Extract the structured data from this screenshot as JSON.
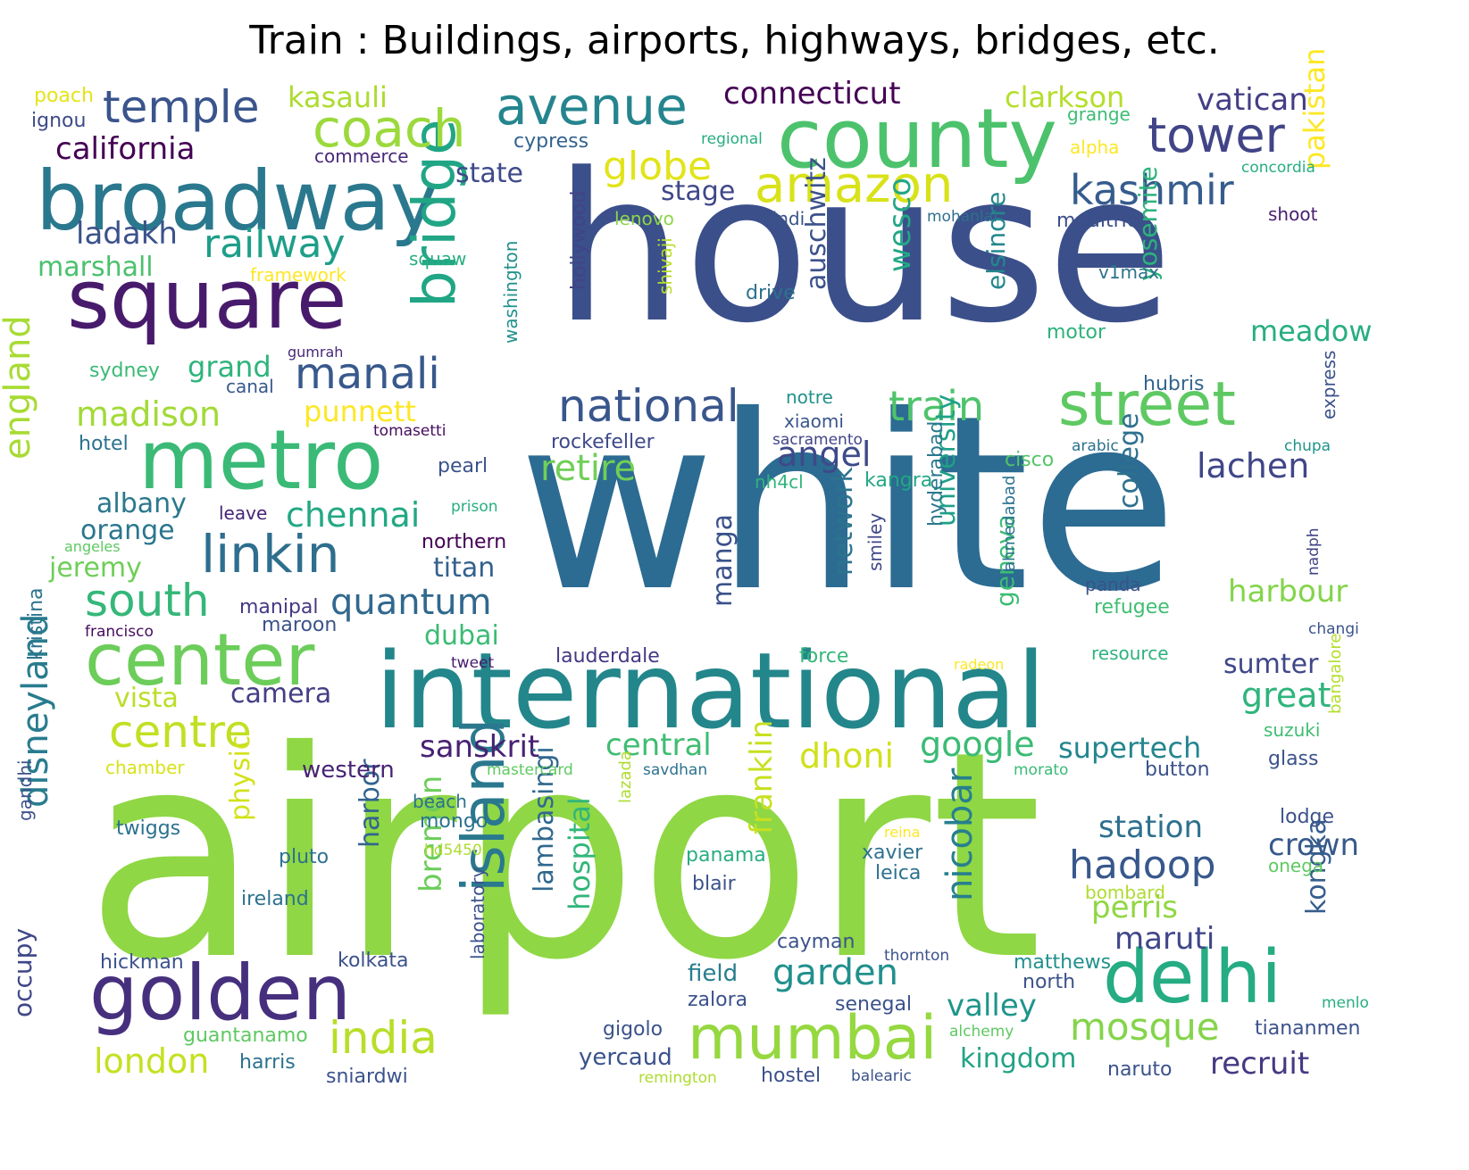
{
  "title": "Train : Buildings, airports, highways, bridges, etc.",
  "palette": [
    "#440154",
    "#472d7b",
    "#3b528b",
    "#2c728e",
    "#21918c",
    "#28ae80",
    "#5ec962",
    "#addc30",
    "#fde725",
    "#8fd744"
  ],
  "words": [
    {
      "text": "airport",
      "color": "#8fd744"
    },
    {
      "text": "white",
      "color": "#2c6b92"
    },
    {
      "text": "house",
      "color": "#3b4f8a"
    },
    {
      "text": "international",
      "color": "#23868b"
    },
    {
      "text": "county",
      "color": "#4cc26c"
    },
    {
      "text": "broadway",
      "color": "#2a788e"
    },
    {
      "text": "square",
      "color": "#481a6c"
    },
    {
      "text": "metro",
      "color": "#3aba76"
    },
    {
      "text": "center",
      "color": "#6ccd5a"
    },
    {
      "text": "golden",
      "color": "#46307e"
    },
    {
      "text": "delhi",
      "color": "#25ac82"
    },
    {
      "text": "mumbai",
      "color": "#95d840"
    },
    {
      "text": "island",
      "color": "#2a788e"
    },
    {
      "text": "bridge",
      "color": "#21a685"
    },
    {
      "text": "street",
      "color": "#5ec962"
    },
    {
      "text": "avenue",
      "color": "#25858e"
    },
    {
      "text": "amazon",
      "color": "#d8e219"
    },
    {
      "text": "coach",
      "color": "#9bd93c"
    },
    {
      "text": "tower",
      "color": "#414487"
    },
    {
      "text": "linkin",
      "color": "#2e6e8e"
    },
    {
      "text": "temple",
      "color": "#3a548c"
    },
    {
      "text": "national",
      "color": "#39568c"
    },
    {
      "text": "india",
      "color": "#b8de29"
    },
    {
      "text": "manali",
      "color": "#38598c"
    },
    {
      "text": "kashmir",
      "color": "#365c8d"
    },
    {
      "text": "centre",
      "color": "#c2df23"
    },
    {
      "text": "south",
      "color": "#35b779"
    },
    {
      "text": "train",
      "color": "#4ec36b"
    },
    {
      "text": "railway",
      "color": "#1f9e89"
    },
    {
      "text": "hadoop",
      "color": "#38588c"
    },
    {
      "text": "california",
      "color": "#440154"
    },
    {
      "text": "england",
      "color": "#a8db34"
    },
    {
      "text": "disneyland",
      "color": "#287c8e"
    },
    {
      "text": "chennai",
      "color": "#22a884"
    },
    {
      "text": "mosque",
      "color": "#84d44b"
    },
    {
      "text": "london",
      "color": "#c5e021"
    },
    {
      "text": "madison",
      "color": "#a2da37"
    },
    {
      "text": "quantum",
      "color": "#31688e"
    },
    {
      "text": "globe",
      "color": "#e2e418"
    },
    {
      "text": "garden",
      "color": "#21908d"
    },
    {
      "text": "connecticut",
      "color": "#440154"
    },
    {
      "text": "nicobar",
      "color": "#277f8e"
    },
    {
      "text": "retire",
      "color": "#70cf57"
    },
    {
      "text": "lachen",
      "color": "#404688"
    },
    {
      "text": "angel",
      "color": "#3e4a89"
    },
    {
      "text": "station",
      "color": "#2d708e"
    },
    {
      "text": "clarkson",
      "color": "#b5de2b"
    },
    {
      "text": "vatican",
      "color": "#433e85"
    },
    {
      "text": "recruit",
      "color": "#443983"
    },
    {
      "text": "yosemite",
      "color": "#2db27d"
    },
    {
      "text": "kingdom",
      "color": "#21a386"
    },
    {
      "text": "google",
      "color": "#3bbb75"
    },
    {
      "text": "dhoni",
      "color": "#d0e11c"
    },
    {
      "text": "pakistan",
      "color": "#fde725"
    },
    {
      "text": "sanskrit",
      "color": "#482173"
    },
    {
      "text": "franklin",
      "color": "#c8e020"
    },
    {
      "text": "wesco",
      "color": "#22a785"
    },
    {
      "text": "auschwitz",
      "color": "#3b528b"
    },
    {
      "text": "harbour",
      "color": "#84d44b"
    },
    {
      "text": "great",
      "color": "#2fb47c"
    },
    {
      "text": "perris",
      "color": "#90d743"
    },
    {
      "text": "maruti",
      "color": "#3f4788"
    },
    {
      "text": "bremen",
      "color": "#6ccd5a"
    },
    {
      "text": "lambasingi",
      "color": "#31688e"
    },
    {
      "text": "hospital",
      "color": "#32b67a"
    },
    {
      "text": "crown",
      "color": "#38598c"
    },
    {
      "text": "kongka",
      "color": "#365d8d"
    },
    {
      "text": "valley",
      "color": "#1f958b"
    },
    {
      "text": "ladakh",
      "color": "#3b528b"
    },
    {
      "text": "stage",
      "color": "#3f4889"
    },
    {
      "text": "state",
      "color": "#3e4989"
    },
    {
      "text": "college",
      "color": "#2d718e"
    },
    {
      "text": "university",
      "color": "#1fa088"
    },
    {
      "text": "network",
      "color": "#2c738e"
    },
    {
      "text": "elsinore",
      "color": "#24878e"
    },
    {
      "text": "meadow",
      "color": "#28ae80"
    },
    {
      "text": "punnett",
      "color": "#fde725"
    },
    {
      "text": "grand",
      "color": "#2fb47c"
    },
    {
      "text": "marshall",
      "color": "#4ac16d"
    },
    {
      "text": "albany",
      "color": "#2a788e"
    },
    {
      "text": "orange",
      "color": "#2a768e"
    },
    {
      "text": "jeremy",
      "color": "#6ece58"
    },
    {
      "text": "titan",
      "color": "#34618d"
    },
    {
      "text": "dubai",
      "color": "#3bbb75"
    },
    {
      "text": "vista",
      "color": "#bade28"
    },
    {
      "text": "camera",
      "color": "#433e85"
    },
    {
      "text": "central",
      "color": "#40bd72"
    },
    {
      "text": "supertech",
      "color": "#24868e"
    },
    {
      "text": "sumter",
      "color": "#3f4788"
    },
    {
      "text": "manga",
      "color": "#3b528b"
    },
    {
      "text": "physic",
      "color": "#d2e21b"
    },
    {
      "text": "harbor",
      "color": "#32648e"
    },
    {
      "text": "geneva",
      "color": "#3dbc74"
    },
    {
      "text": "occupy",
      "color": "#3f4788"
    },
    {
      "text": "western",
      "color": "#482475"
    },
    {
      "text": "kasauli",
      "color": "#addc30"
    },
    {
      "text": "field",
      "color": "#287d8e"
    },
    {
      "text": "hyderabad",
      "color": "#2a788e"
    },
    {
      "text": "kristina",
      "color": "#2c738e"
    },
    {
      "text": "poach",
      "color": "#e5e419"
    },
    {
      "text": "ignou",
      "color": "#3e4a89"
    },
    {
      "text": "cypress",
      "color": "#33638d"
    },
    {
      "text": "commerce",
      "color": "#482878"
    },
    {
      "text": "regional",
      "color": "#26ad81"
    },
    {
      "text": "grange",
      "color": "#3dbc74"
    },
    {
      "text": "alpha",
      "color": "#fde725"
    },
    {
      "text": "concordia",
      "color": "#27ad81"
    },
    {
      "text": "lenovo",
      "color": "#8bd646"
    },
    {
      "text": "hindi",
      "color": "#3a538b"
    },
    {
      "text": "mohanlal",
      "color": "#2e6f8e"
    },
    {
      "text": "moultrie",
      "color": "#3c4f8a"
    },
    {
      "text": "shoot",
      "color": "#481f70"
    },
    {
      "text": "framework",
      "color": "#fde725"
    },
    {
      "text": "squaw",
      "color": "#26ad81"
    },
    {
      "text": "v1max",
      "color": "#2c728e"
    },
    {
      "text": "drive",
      "color": "#2c718e"
    },
    {
      "text": "hollywood",
      "color": "#414487"
    },
    {
      "text": "shivaji",
      "color": "#b8de29"
    },
    {
      "text": "motor",
      "color": "#2db27d"
    },
    {
      "text": "gumrah",
      "color": "#482878"
    },
    {
      "text": "sydney",
      "color": "#3aba76"
    },
    {
      "text": "canal",
      "color": "#38598c"
    },
    {
      "text": "washington",
      "color": "#21918c"
    },
    {
      "text": "notre",
      "color": "#21918c"
    },
    {
      "text": "xiaomi",
      "color": "#39568c"
    },
    {
      "text": "hubris",
      "color": "#33638d"
    },
    {
      "text": "tomasetti",
      "color": "#460b5e"
    },
    {
      "text": "sacramento",
      "color": "#414487"
    },
    {
      "text": "hotel",
      "color": "#2c728e"
    },
    {
      "text": "rockefeller",
      "color": "#3e4a89"
    },
    {
      "text": "arabic",
      "color": "#2c728e"
    },
    {
      "text": "chupa",
      "color": "#1f958b"
    },
    {
      "text": "express",
      "color": "#3b528b"
    },
    {
      "text": "pearl",
      "color": "#3b528b"
    },
    {
      "text": "cisco",
      "color": "#54c568"
    },
    {
      "text": "nh4cl",
      "color": "#2fb47c"
    },
    {
      "text": "kangra",
      "color": "#22a884"
    },
    {
      "text": "leave",
      "color": "#482475"
    },
    {
      "text": "prison",
      "color": "#28ae80"
    },
    {
      "text": "angeles",
      "color": "#5ec962"
    },
    {
      "text": "northern",
      "color": "#440154"
    },
    {
      "text": "nadph",
      "color": "#414487"
    },
    {
      "text": "panda",
      "color": "#3b528b"
    },
    {
      "text": "refugee",
      "color": "#40bd72"
    },
    {
      "text": "manipal",
      "color": "#443983"
    },
    {
      "text": "smiley",
      "color": "#3f4788"
    },
    {
      "text": "ahmedabad",
      "color": "#2c728e"
    },
    {
      "text": "maroon",
      "color": "#3b528b"
    },
    {
      "text": "francisco",
      "color": "#460b5e"
    },
    {
      "text": "changi",
      "color": "#3a548c"
    },
    {
      "text": "lauderdale",
      "color": "#443983"
    },
    {
      "text": "force",
      "color": "#35b779"
    },
    {
      "text": "resource",
      "color": "#2db27d"
    },
    {
      "text": "tweet",
      "color": "#481a6c"
    },
    {
      "text": "radeon",
      "color": "#fde725"
    },
    {
      "text": "suzuki",
      "color": "#40bd72"
    },
    {
      "text": "bangalore",
      "color": "#b5de2b"
    },
    {
      "text": "glass",
      "color": "#3b528b"
    },
    {
      "text": "chamber",
      "color": "#d8e219"
    },
    {
      "text": "mastercard",
      "color": "#5ec962"
    },
    {
      "text": "savdhan",
      "color": "#2c728e"
    },
    {
      "text": "morato",
      "color": "#3aba76"
    },
    {
      "text": "button",
      "color": "#3b528b"
    },
    {
      "text": "beach",
      "color": "#2c728e"
    },
    {
      "text": "mongo",
      "color": "#2c728e"
    },
    {
      "text": "lazada",
      "color": "#addc30"
    },
    {
      "text": "lodge",
      "color": "#3b528b"
    },
    {
      "text": "twiggs",
      "color": "#2c728e"
    },
    {
      "text": "reina",
      "color": "#fde725"
    },
    {
      "text": "gandhi",
      "color": "#3b528b"
    },
    {
      "text": "pluto",
      "color": "#2c728e"
    },
    {
      "text": "hd5450",
      "color": "#addc30"
    },
    {
      "text": "panama",
      "color": "#28ae80"
    },
    {
      "text": "xavier",
      "color": "#2c728e"
    },
    {
      "text": "leica",
      "color": "#2c728e"
    },
    {
      "text": "onega",
      "color": "#5ec962"
    },
    {
      "text": "blair",
      "color": "#3b528b"
    },
    {
      "text": "ireland",
      "color": "#2c728e"
    },
    {
      "text": "bombard",
      "color": "#addc30"
    },
    {
      "text": "cayman",
      "color": "#3b528b"
    },
    {
      "text": "hickman",
      "color": "#3b528b"
    },
    {
      "text": "kolkata",
      "color": "#3b528b"
    },
    {
      "text": "thornton",
      "color": "#3b528b"
    },
    {
      "text": "matthews",
      "color": "#21918c"
    },
    {
      "text": "north",
      "color": "#3b528b"
    },
    {
      "text": "laboratory",
      "color": "#3b528b"
    },
    {
      "text": "zalora",
      "color": "#3b528b"
    },
    {
      "text": "menlo",
      "color": "#28ae80"
    },
    {
      "text": "senegal",
      "color": "#3b528b"
    },
    {
      "text": "guantanamo",
      "color": "#5ec962"
    },
    {
      "text": "gigolo",
      "color": "#3b528b"
    },
    {
      "text": "alchemy",
      "color": "#5ec962"
    },
    {
      "text": "tiananmen",
      "color": "#3b528b"
    },
    {
      "text": "harris",
      "color": "#2c728e"
    },
    {
      "text": "yercaud",
      "color": "#3b528b"
    },
    {
      "text": "sniardwi",
      "color": "#3b528b"
    },
    {
      "text": "hostel",
      "color": "#3b528b"
    },
    {
      "text": "balearic",
      "color": "#3b528b"
    },
    {
      "text": "naruto",
      "color": "#3b528b"
    },
    {
      "text": "remington",
      "color": "#addc30"
    }
  ]
}
